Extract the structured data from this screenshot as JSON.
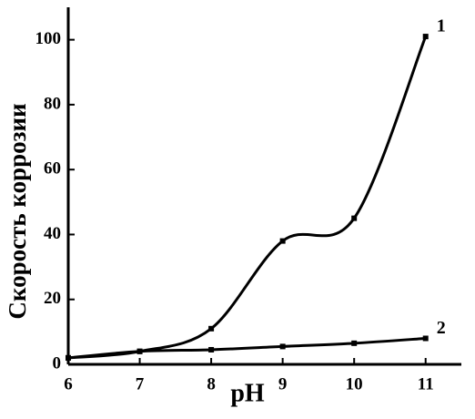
{
  "chart_data": {
    "type": "line",
    "x_label": "pH",
    "y_label": "Скорость коррозии",
    "x": [
      6,
      7,
      8,
      9,
      10,
      11
    ],
    "series": [
      {
        "name": "1",
        "color": "#000000",
        "values": [
          2,
          4,
          11,
          38,
          45,
          101
        ]
      },
      {
        "name": "2",
        "color": "#000000",
        "values": [
          2,
          4,
          4.5,
          5.5,
          6.5,
          8
        ]
      }
    ],
    "xlim": [
      6,
      11.5
    ],
    "xticks": [
      6,
      7,
      8,
      9,
      10,
      11
    ],
    "ylim": [
      0,
      110
    ],
    "yticks": [
      0,
      20,
      40,
      60,
      80,
      100
    ]
  }
}
